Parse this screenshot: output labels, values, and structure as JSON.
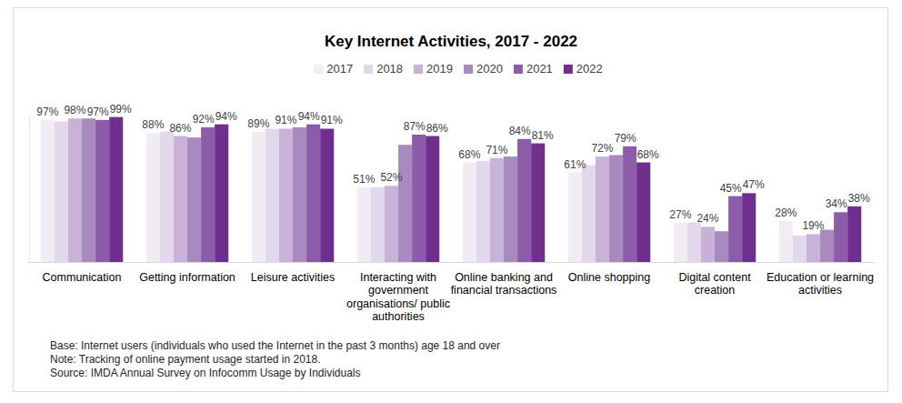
{
  "chart_data": {
    "type": "bar",
    "title": "Key Internet Activities, 2017 - 2022",
    "categories": [
      "Communication",
      "Getting information",
      "Leisure activities",
      "Interacting with government organisations/ public authorities",
      "Online banking and financial transactions",
      "Online shopping",
      "Digital content creation",
      "Education or learning activities"
    ],
    "series": [
      {
        "name": "2017",
        "color": "#f1ecf4",
        "values": [
          97,
          88,
          89,
          51,
          68,
          61,
          27,
          28
        ],
        "value_labels": [
          "97%",
          "88%",
          "89%",
          "51%",
          "68%",
          "61%",
          "27%",
          "28%"
        ]
      },
      {
        "name": "2018",
        "color": "#e3d7eb",
        "values": [
          96,
          89,
          91,
          51,
          69,
          66,
          27,
          18
        ],
        "value_labels": [
          null,
          null,
          null,
          null,
          null,
          null,
          null,
          null
        ]
      },
      {
        "name": "2019",
        "color": "#c9b2d8",
        "values": [
          98,
          86,
          91,
          52,
          71,
          72,
          24,
          19
        ],
        "value_labels": [
          "98%",
          "86%",
          "91%",
          "52%",
          "71%",
          "72%",
          "24%",
          "19%"
        ]
      },
      {
        "name": "2020",
        "color": "#a98abf",
        "values": [
          98,
          85,
          92,
          80,
          72,
          73,
          21,
          22
        ],
        "value_labels": [
          null,
          null,
          null,
          null,
          null,
          null,
          null,
          null
        ]
      },
      {
        "name": "2021",
        "color": "#8c5ca8",
        "values": [
          97,
          92,
          94,
          87,
          84,
          79,
          45,
          34
        ],
        "value_labels": [
          "97%",
          "92%",
          "94%",
          "87%",
          "84%",
          "79%",
          "45%",
          "34%"
        ]
      },
      {
        "name": "2022",
        "color": "#6f2f8f",
        "values": [
          99,
          94,
          91,
          86,
          81,
          68,
          47,
          38
        ],
        "value_labels": [
          "99%",
          "94%",
          "91%",
          "86%",
          "81%",
          "68%",
          "47%",
          "38%"
        ]
      }
    ],
    "ylim": [
      0,
      100
    ],
    "data_labels": true,
    "tick_labels": "x",
    "legend": "top",
    "notes": [
      "Base: Internet users (individuals who used the Internet in the past 3 months) age 18 and over",
      "Note: Tracking of online payment usage started in 2018.",
      "Source: IMDA Annual Survey on Infocomm Usage by Individuals"
    ]
  }
}
